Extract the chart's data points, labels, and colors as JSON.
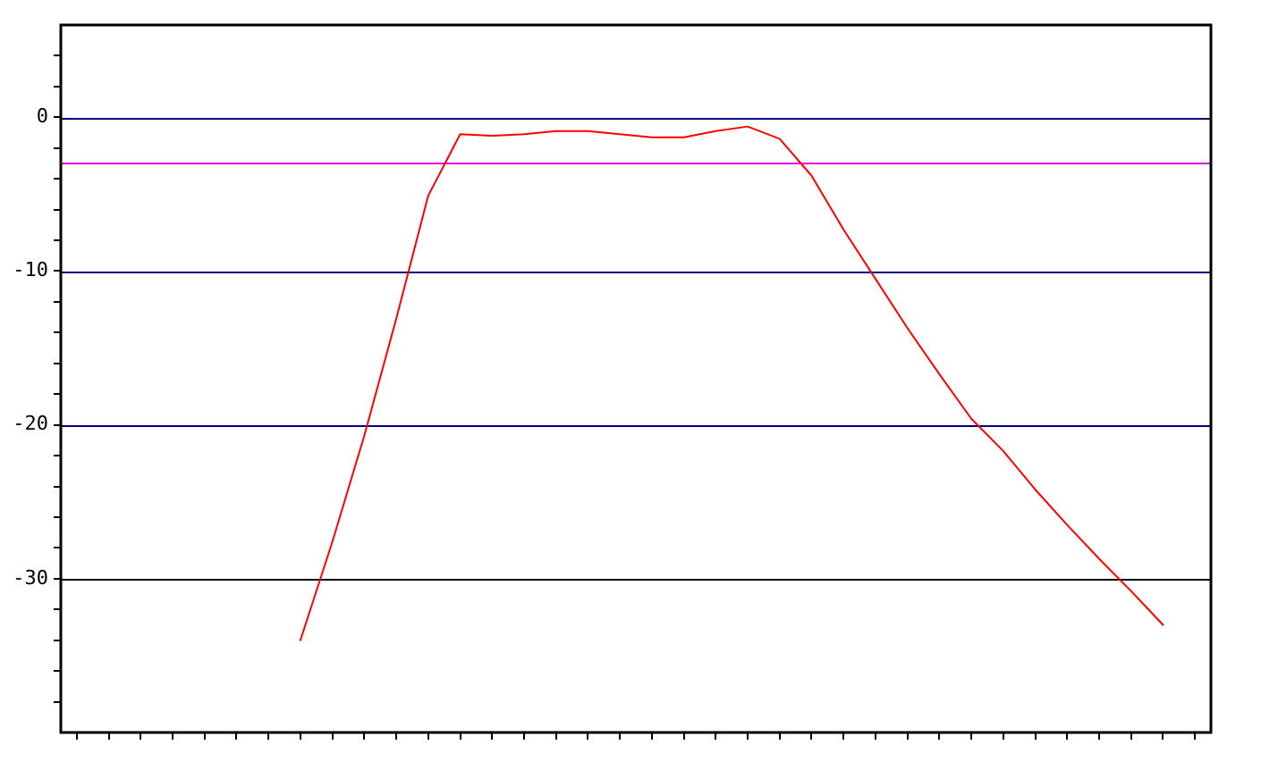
{
  "chart_data": {
    "type": "line",
    "categories": [
      null,
      null,
      null,
      null,
      null,
      null,
      null,
      null,
      null,
      null,
      null,
      null,
      null,
      null,
      null,
      null,
      null,
      null,
      null,
      null,
      null,
      null,
      null,
      null,
      null,
      null,
      null,
      null,
      null,
      null,
      null,
      null,
      null,
      null,
      null,
      null
    ],
    "ylim": [
      -40,
      6
    ],
    "yticks": [
      {
        "value": -38,
        "label": null
      },
      {
        "value": -36,
        "label": null
      },
      {
        "value": -34,
        "label": null
      },
      {
        "value": -32,
        "label": null
      },
      -30,
      {
        "value": -28,
        "label": null
      },
      {
        "value": -26,
        "label": null
      },
      {
        "value": -24,
        "label": null
      },
      {
        "value": -22,
        "label": null
      },
      -20,
      {
        "value": -18,
        "label": null
      },
      {
        "value": -16,
        "label": null
      },
      {
        "value": -14,
        "label": null
      },
      {
        "value": -12,
        "label": null
      },
      -10,
      {
        "value": -8,
        "label": null
      },
      {
        "value": -6,
        "label": null
      },
      {
        "value": -4,
        "label": null
      },
      {
        "value": -2,
        "label": null
      },
      0,
      {
        "value": 2,
        "label": null
      },
      {
        "value": 4,
        "label": null
      }
    ],
    "tick_labels": "y",
    "marker": "none",
    "line_style": "solid",
    "ref_lines": [
      {
        "axis": "y",
        "value": 0,
        "color": "#000080"
      },
      {
        "axis": "y",
        "value": -10,
        "color": "#000080"
      },
      {
        "axis": "y",
        "value": -20,
        "color": "#000080"
      },
      {
        "axis": "y",
        "value": -30,
        "color": "#000000"
      },
      {
        "axis": "y",
        "value": -3,
        "color": "#e000e0"
      }
    ],
    "series": [
      {
        "color": "#ff0000",
        "values": [
          null,
          null,
          null,
          null,
          null,
          null,
          null,
          -34,
          -27.6,
          -20.7,
          -13.1,
          -5.1,
          -1.1,
          -1.2,
          -1.1,
          -0.9,
          -0.9,
          -1.1,
          -1.3,
          -1.3,
          -0.9,
          -0.6,
          -1.4,
          -3.8,
          -7.3,
          -10.5,
          -13.7,
          -16.7,
          -19.6,
          -21.7,
          -24.2,
          -26.5,
          -28.7,
          -30.8,
          -33,
          null
        ]
      }
    ]
  }
}
